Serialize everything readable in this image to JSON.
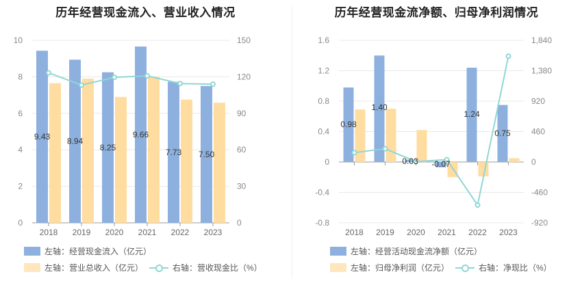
{
  "chart_data": [
    {
      "type": "bar+line",
      "title": "历年经营现金流入、营业收入情况",
      "categories": [
        "2018",
        "2019",
        "2020",
        "2021",
        "2022",
        "2023"
      ],
      "left_axis": {
        "ticks": [
          "0",
          "2",
          "4",
          "6",
          "8",
          "10"
        ],
        "range": [
          0,
          10
        ]
      },
      "right_axis": {
        "ticks": [
          "0",
          "30",
          "60",
          "90",
          "120",
          "150"
        ],
        "range": [
          0,
          150
        ]
      },
      "series": [
        {
          "name": "左轴：经营现金流入（亿元）",
          "type": "bar",
          "axis": "left",
          "color": "#8eb0de",
          "values": [
            9.43,
            8.94,
            8.25,
            9.66,
            7.73,
            7.5
          ],
          "labels": [
            "9.43",
            "8.94",
            "8.25",
            "9.66",
            "7.73",
            "7.50"
          ]
        },
        {
          "name": "左轴：营业总收入（亿元）",
          "type": "bar",
          "axis": "left",
          "color": "#ffdca0",
          "values": [
            7.65,
            7.9,
            6.9,
            8.0,
            6.75,
            6.58
          ]
        },
        {
          "name": "右轴：营收现金比（%）",
          "type": "line",
          "axis": "right",
          "color": "#8fd6d6",
          "values": [
            123.3,
            113.2,
            119.6,
            120.8,
            114.5,
            114.0
          ]
        }
      ]
    },
    {
      "type": "bar+line",
      "title": "历年经营现金流净额、归母净利润情况",
      "categories": [
        "2018",
        "2019",
        "2020",
        "2021",
        "2022",
        "2023"
      ],
      "left_axis": {
        "ticks": [
          "-0.8",
          "-0.4",
          "0",
          "0.4",
          "0.8",
          "1.2",
          "1.6"
        ],
        "range": [
          -0.8,
          1.6
        ]
      },
      "right_axis": {
        "ticks": [
          "-920",
          "-460",
          "0",
          "460",
          "920",
          "1,380",
          "1,840"
        ],
        "range": [
          -920,
          1840
        ]
      },
      "series": [
        {
          "name": "左轴：经营活动现金流净额（亿元）",
          "type": "bar",
          "axis": "left",
          "color": "#8eb0de",
          "values": [
            0.98,
            1.4,
            0.03,
            -0.07,
            1.24,
            0.75
          ],
          "labels": [
            "0.98",
            "1.40",
            "0.03",
            "-0.07",
            "1.24",
            "0.75"
          ]
        },
        {
          "name": "左轴：归母净利润（亿元）",
          "type": "bar",
          "axis": "left",
          "color": "#ffdca0",
          "values": [
            0.69,
            0.7,
            0.42,
            -0.2,
            -0.19,
            0.05
          ]
        },
        {
          "name": "右轴：净现比（%）",
          "type": "line",
          "axis": "right",
          "color": "#8fd6d6",
          "values": [
            142,
            200,
            7,
            35,
            -652,
            1600
          ]
        }
      ]
    }
  ]
}
